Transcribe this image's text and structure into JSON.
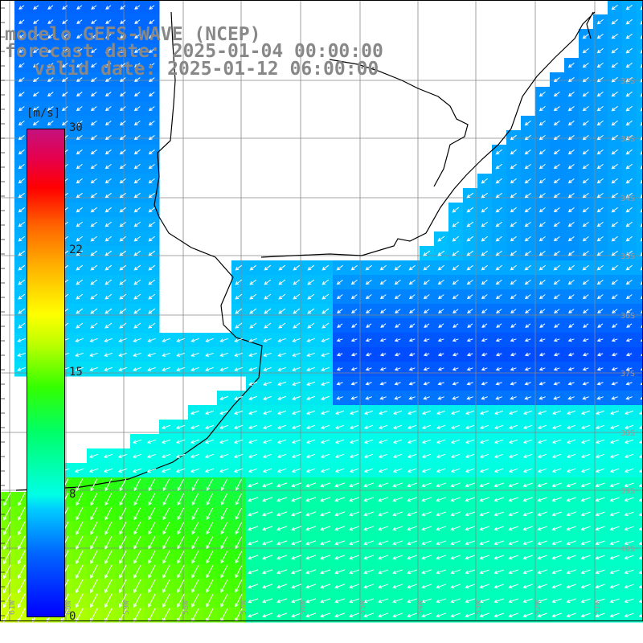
{
  "title": {
    "line1": "modelo GEFS-WAVE (NCEP)",
    "line2": "forecast date: 2025-01-04 00:00:00",
    "line3": "valid date: 2025-01-12 06:00:00"
  },
  "colorbar": {
    "units": "[m/s]",
    "min": 0,
    "max": 30,
    "ticks": [
      "30",
      "22",
      "15",
      "8",
      "0"
    ],
    "tick_values": [
      30,
      22,
      15,
      8,
      0
    ],
    "colors": [
      "#0000ff",
      "#00ccff",
      "#00ffe6",
      "#33ff00",
      "#ffff00",
      "#ff6600",
      "#ff0000",
      "#c4127e"
    ]
  },
  "map": {
    "latitude_labels": [
      "32S",
      "33S",
      "34S",
      "35S",
      "36S",
      "37S",
      "38S",
      "39S",
      "40S"
    ],
    "longitude_labels": [
      "61W",
      "60W",
      "59W",
      "58W",
      "57W",
      "56W",
      "55W",
      "54W",
      "53W",
      "52W",
      "51W"
    ],
    "fill_color_land": "#ffffff",
    "grid_color": "#888888",
    "coast_color": "#000000",
    "vector_color": "#ffffff",
    "dominant_wind_direction": "from east-northeast"
  }
}
